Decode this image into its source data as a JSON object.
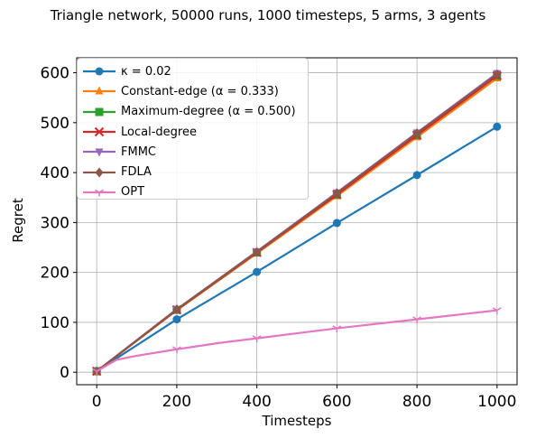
{
  "chart_data": {
    "type": "line",
    "title": "Triangle network, 50000 runs, 1000 timesteps, 5 arms, 3 agents",
    "xlabel": "Timesteps",
    "ylabel": "Regret",
    "xlim": [
      -50,
      1050
    ],
    "ylim": [
      -25,
      630
    ],
    "xticks": [
      0,
      200,
      400,
      600,
      800,
      1000
    ],
    "yticks": [
      0,
      100,
      200,
      300,
      400,
      500,
      600
    ],
    "grid": true,
    "legend_position": "top-left",
    "series": [
      {
        "name": "κ = 0.02",
        "color": "#1f77b4",
        "marker": "circle",
        "x": [
          0,
          200,
          400,
          600,
          800,
          1000
        ],
        "values": [
          2,
          106,
          201,
          299,
          395,
          492
        ]
      },
      {
        "name": "Constant-edge (α = 0.333)",
        "color": "#ff7f0e",
        "marker": "triangle-up",
        "x": [
          0,
          200,
          400,
          600,
          800,
          1000
        ],
        "values": [
          2,
          124,
          238,
          353,
          471,
          589
        ]
      },
      {
        "name": "Maximum-degree (α = 0.500)",
        "color": "#2ca02c",
        "marker": "square",
        "x": [
          0,
          200,
          400,
          600,
          800,
          1000
        ],
        "values": [
          2,
          125,
          240,
          356,
          475,
          594
        ]
      },
      {
        "name": "Local-degree",
        "color": "#d62728",
        "marker": "x",
        "x": [
          0,
          200,
          400,
          600,
          800,
          1000
        ],
        "values": [
          2,
          125,
          240,
          356,
          475,
          594
        ]
      },
      {
        "name": "FMMC",
        "color": "#9467bd",
        "marker": "triangle-down",
        "x": [
          0,
          200,
          400,
          600,
          800,
          1000
        ],
        "values": [
          2,
          126,
          242,
          360,
          480,
          599
        ]
      },
      {
        "name": "FDLA",
        "color": "#8c564b",
        "marker": "diamond",
        "x": [
          0,
          200,
          400,
          600,
          800,
          1000
        ],
        "values": [
          2,
          126,
          241,
          359,
          479,
          597
        ]
      },
      {
        "name": "OPT",
        "color": "#e377c2",
        "marker": "tri-down",
        "x": [
          0,
          50,
          100,
          200,
          300,
          400,
          500,
          600,
          700,
          800,
          900,
          1000
        ],
        "values": [
          2,
          25,
          33,
          46,
          58,
          68,
          78,
          88,
          97,
          106,
          115,
          124
        ]
      }
    ]
  }
}
